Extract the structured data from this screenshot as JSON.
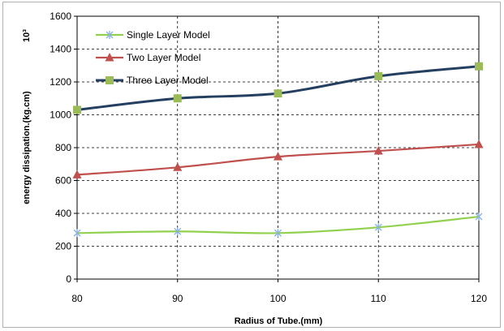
{
  "chart_data": {
    "type": "line",
    "x": [
      80,
      90,
      100,
      110,
      120
    ],
    "series": [
      {
        "name": "Single Layer Model",
        "values": [
          280,
          290,
          280,
          315,
          380
        ],
        "color": "#92d050",
        "marker": "asterisk"
      },
      {
        "name": "Two Layer Model",
        "values": [
          635,
          680,
          745,
          780,
          820
        ],
        "color": "#c0504d",
        "marker": "triangle"
      },
      {
        "name": "Three Layer Model",
        "values": [
          1030,
          1100,
          1130,
          1235,
          1295
        ],
        "color": "#9bbb59",
        "line_color": "#243f60",
        "marker": "square"
      }
    ],
    "xlabel": "Radius of Tube.(mm)",
    "ylabel": "energy dissipation.(kg.cm)",
    "y_multiplier_label": "10³",
    "xlim": [
      80,
      120
    ],
    "ylim": [
      0,
      1600
    ],
    "x_ticks": [
      "80",
      "90",
      "100",
      "110",
      "120"
    ],
    "y_ticks": [
      "0",
      "200",
      "400",
      "600",
      "800",
      "1000",
      "1200",
      "1400",
      "1600"
    ],
    "grid": true,
    "legend_position": "top-left"
  }
}
